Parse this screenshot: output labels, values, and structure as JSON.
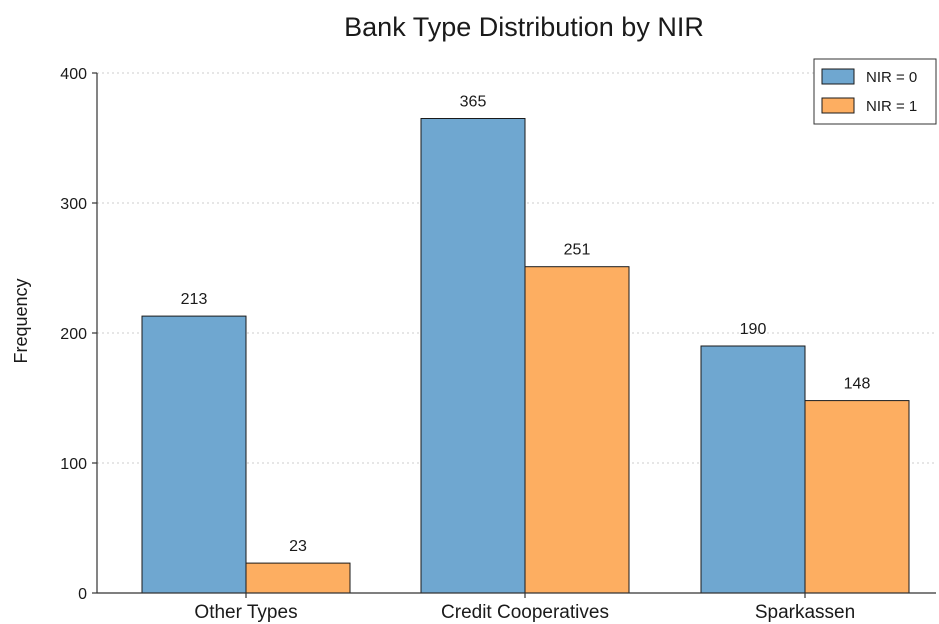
{
  "colors": {
    "nir0": "#6fa7d0",
    "nir1": "#fdae61"
  },
  "chart_data": {
    "type": "bar",
    "title": "Bank Type Distribution by NIR",
    "xlabel": "",
    "ylabel": "Frequency",
    "categories": [
      "Other Types",
      "Credit Cooperatives",
      "Sparkassen"
    ],
    "series": [
      {
        "name": "NIR = 0",
        "values": [
          213,
          365,
          190
        ]
      },
      {
        "name": "NIR = 1",
        "values": [
          23,
          251,
          148
        ]
      }
    ],
    "ylim": [
      0,
      400
    ],
    "yticks": [
      "0",
      "100",
      "200",
      "300",
      "400"
    ],
    "grid": true,
    "legend": "top-right"
  }
}
